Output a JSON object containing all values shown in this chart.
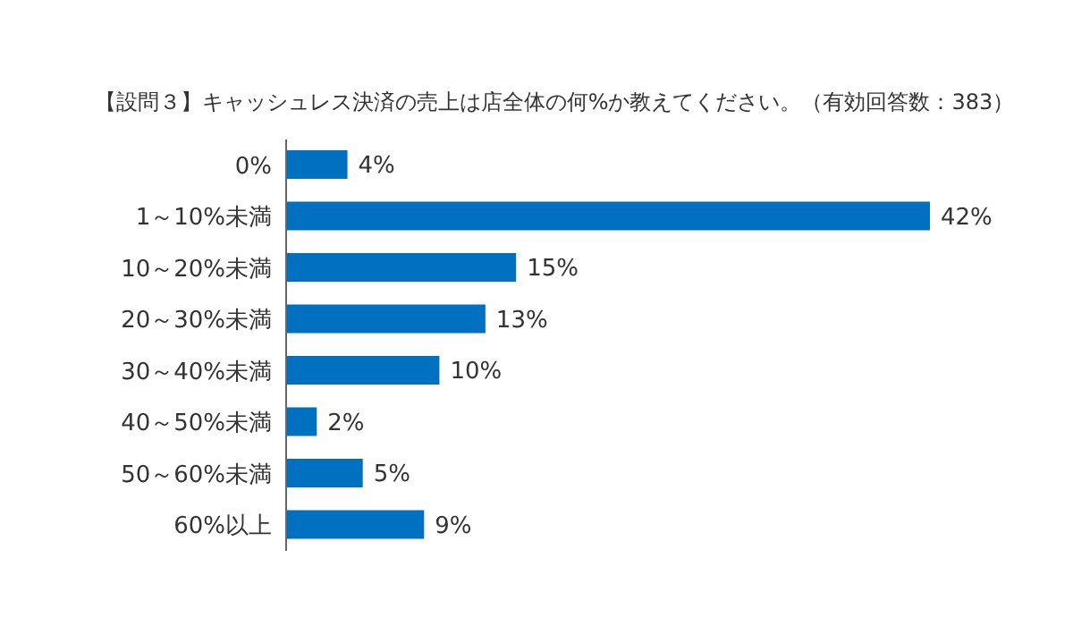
{
  "chart_data": {
    "type": "bar",
    "orientation": "horizontal",
    "title": "【設問３】キャッシュレス決済の売上は店全体の何%か教えてください。（有効回答数：383）",
    "categories": [
      "0%",
      "1～10%未満",
      "10～20%未満",
      "20～30%未満",
      "30～40%未満",
      "40～50%未満",
      "50～60%未満",
      "60%以上"
    ],
    "values": [
      4,
      42,
      15,
      13,
      10,
      2,
      5,
      9
    ],
    "value_labels": [
      "4%",
      "42%",
      "15%",
      "13%",
      "10%",
      "2%",
      "5%",
      "9%"
    ],
    "color": "#0070c0",
    "legend": false,
    "grid": false
  }
}
